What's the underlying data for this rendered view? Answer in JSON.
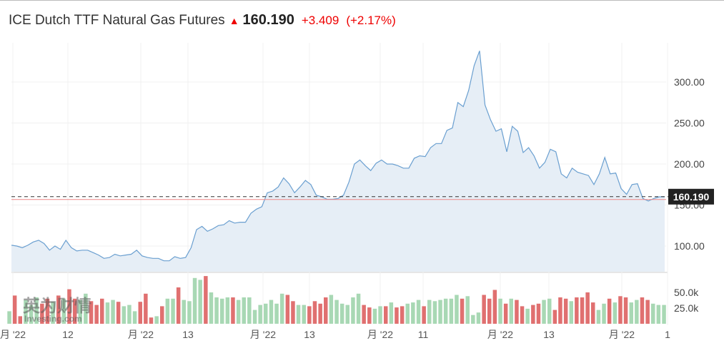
{
  "header": {
    "title": "ICE Dutch TTF Natural Gas Futures",
    "price": "160.190",
    "change": "+3.409",
    "change_pct": "(+2.17%)"
  },
  "colors": {
    "line": "#6a9fd0",
    "fill": "#e6eef6",
    "up": "#a8d8b4",
    "down": "#e07070",
    "accent": "#e00000"
  },
  "watermark": {
    "cn": "英为财情",
    "en": "Investing.com"
  },
  "chart_data": [
    {
      "type": "area",
      "title": "ICE Dutch TTF Natural Gas Futures",
      "ylim": [
        65,
        345
      ],
      "yticks": [
        "100.00",
        "150.00",
        "200.00",
        "250.00",
        "300.00"
      ],
      "ytick_values": [
        100,
        150,
        200,
        250,
        300
      ],
      "current_label": "160.190",
      "current_value": 160.19,
      "prev_close": 156.78,
      "xticks": [
        "月 '22",
        "12",
        "月 '22",
        "13",
        "月 '22",
        "13",
        "月 '22",
        "11",
        "月 '22",
        "13",
        "月 '22",
        "1"
      ],
      "values": [
        101,
        100,
        98,
        101,
        105,
        107,
        103,
        95,
        100,
        96,
        107,
        98,
        94,
        95,
        95,
        92,
        89,
        85,
        86,
        90,
        88,
        89,
        90,
        95,
        88,
        86,
        85,
        85,
        82,
        82,
        87,
        85,
        86,
        98,
        120,
        124,
        118,
        121,
        125,
        126,
        131,
        128,
        129,
        129,
        140,
        145,
        148,
        165,
        167,
        172,
        183,
        176,
        165,
        172,
        180,
        175,
        162,
        160,
        157,
        157,
        158,
        162,
        178,
        200,
        205,
        198,
        192,
        201,
        205,
        200,
        200,
        198,
        195,
        195,
        207,
        210,
        209,
        220,
        225,
        225,
        241,
        244,
        275,
        270,
        290,
        320,
        338,
        272,
        254,
        240,
        243,
        215,
        246,
        240,
        214,
        220,
        210,
        195,
        202,
        218,
        215,
        188,
        183,
        195,
        190,
        188,
        186,
        175,
        188,
        208,
        188,
        189,
        170,
        163,
        175,
        176,
        158,
        155,
        158,
        160,
        160
      ]
    },
    {
      "type": "bar",
      "title": "Volume",
      "yticks": [
        "25.0k",
        "50.0k"
      ],
      "ytick_values": [
        25,
        50
      ],
      "values": [
        20,
        45,
        12,
        38,
        30,
        42,
        32,
        40,
        35,
        45,
        40,
        55,
        40,
        38,
        48,
        36,
        30,
        40,
        34,
        38,
        35,
        28,
        30,
        20,
        35,
        48,
        10,
        12,
        28,
        40,
        40,
        58,
        38,
        36,
        73,
        70,
        76,
        50,
        42,
        40,
        42,
        42,
        38,
        42,
        42,
        22,
        30,
        32,
        38,
        32,
        48,
        46,
        36,
        30,
        30,
        28,
        36,
        32,
        42,
        46,
        38,
        32,
        30,
        42,
        48,
        30,
        26,
        24,
        28,
        28,
        34,
        26,
        28,
        32,
        34,
        38,
        28,
        38,
        36,
        38,
        40,
        40,
        46,
        40,
        44,
        14,
        18,
        46,
        40,
        54,
        40,
        32,
        40,
        38,
        28,
        24,
        30,
        32,
        38,
        40,
        22,
        42,
        40,
        36,
        42,
        42,
        50,
        34,
        22,
        32,
        40,
        34,
        44,
        42,
        34,
        38,
        42,
        38,
        32,
        30,
        30
      ]
    }
  ]
}
